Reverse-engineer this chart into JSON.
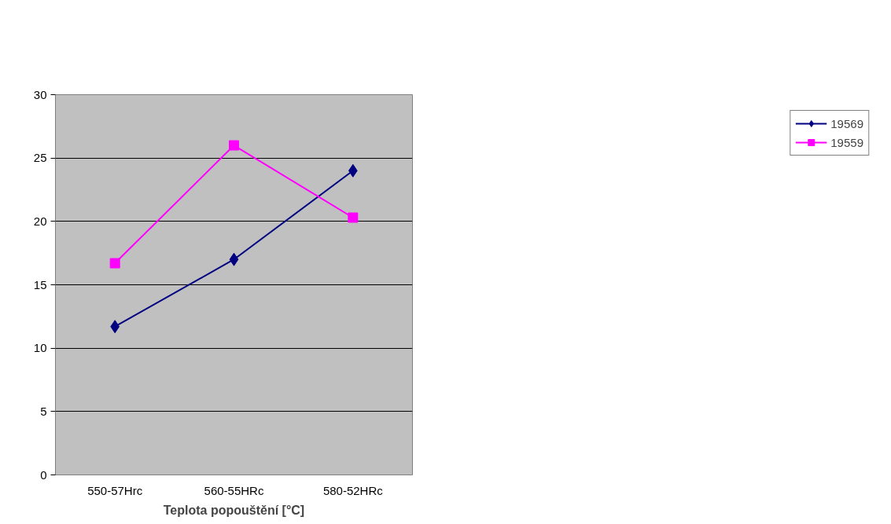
{
  "chart_data": {
    "type": "line",
    "xlabel": "Teplota popouštění [°C]",
    "categories": [
      "550-57Hrc",
      "560-55HRc",
      "580-52HRc"
    ],
    "series": [
      {
        "name": "19569",
        "color": "#000080",
        "marker": "diamond",
        "values": [
          11.7,
          17,
          24
        ]
      },
      {
        "name": "19559",
        "color": "#ff00ff",
        "marker": "square",
        "values": [
          16.7,
          26,
          20.3
        ]
      }
    ],
    "ylim": [
      0,
      30
    ],
    "yticks": [
      0,
      5,
      10,
      15,
      20,
      25,
      30
    ],
    "grid": "y",
    "legend": "right",
    "line_style": "solid"
  }
}
